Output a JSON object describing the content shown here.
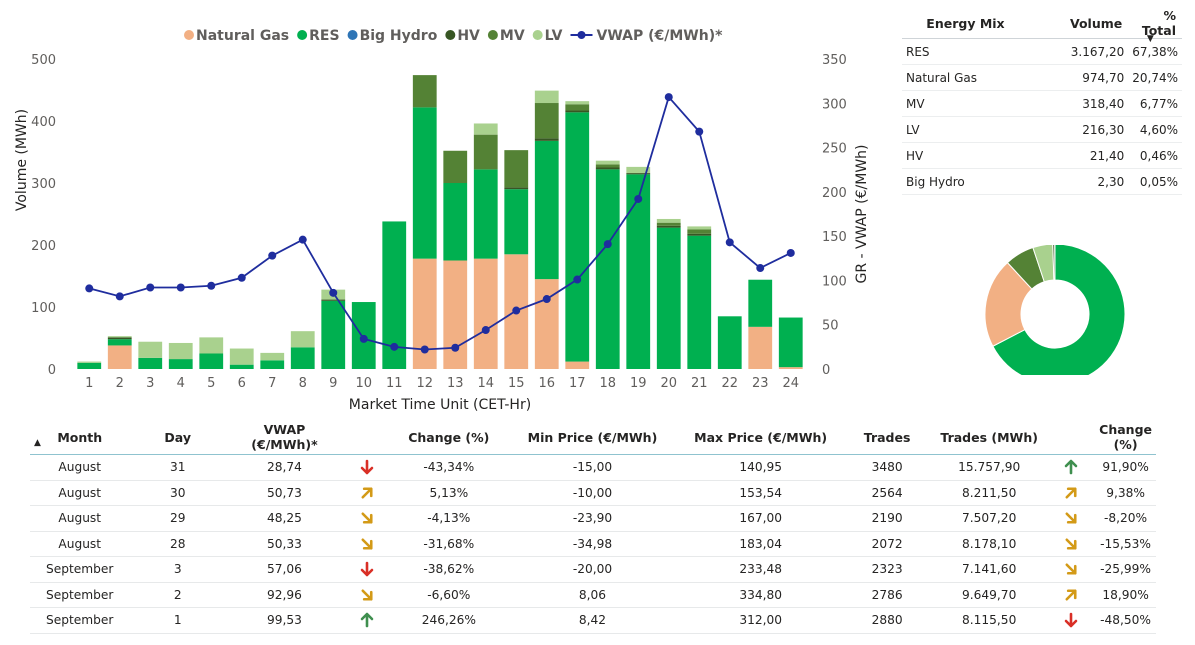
{
  "colors": {
    "natural_gas": "#f2b084",
    "res": "#00b050",
    "big_hydro": "#2e75b6",
    "hv": "#375623",
    "mv": "#548235",
    "lv": "#a9d18e",
    "vwap": "#1f2d9e",
    "arrow_down": "#d92f26",
    "arrow_up": "#3f8f4f",
    "arrow_diag": "#d39a17"
  },
  "chart_data": {
    "type": "bar",
    "stacked": true,
    "legend": {
      "position": "top"
    },
    "xlabel": "Market Time Unit (CET-Hr)",
    "ylabel": "Volume (MWh)",
    "y2label": "GR - VWAP (€/MWh)",
    "ylim": [
      0,
      500
    ],
    "y2lim": [
      0,
      350
    ],
    "yticks": [
      "0",
      "100",
      "200",
      "300",
      "400",
      "500"
    ],
    "y2ticks": [
      "0",
      "50",
      "100",
      "150",
      "200",
      "250",
      "300",
      "350"
    ],
    "categories": [
      "1",
      "2",
      "3",
      "4",
      "5",
      "6",
      "7",
      "8",
      "9",
      "10",
      "11",
      "12",
      "13",
      "14",
      "15",
      "16",
      "17",
      "18",
      "19",
      "20",
      "21",
      "22",
      "23",
      "24"
    ],
    "series": [
      {
        "name": "Natural Gas",
        "key": "natural_gas",
        "values": [
          0,
          38,
          0,
          0,
          0,
          0,
          0,
          0,
          0,
          0,
          0,
          178,
          175,
          178,
          185,
          145,
          12,
          0,
          0,
          0,
          0,
          0,
          68,
          3
        ]
      },
      {
        "name": "RES",
        "key": "res",
        "values": [
          10,
          10,
          18,
          16,
          25,
          7,
          14,
          35,
          110,
          108,
          238,
          244,
          125,
          144,
          105,
          223,
          402,
          322,
          314,
          228,
          215,
          85,
          76,
          80
        ]
      },
      {
        "name": "Big Hydro",
        "key": "big_hydro",
        "values": [
          0,
          0,
          0,
          0,
          0,
          0,
          0,
          0,
          0,
          0,
          0,
          0,
          0,
          0,
          0,
          0,
          0,
          0,
          0,
          0,
          0,
          0,
          0,
          0
        ]
      },
      {
        "name": "HV",
        "key": "hv",
        "values": [
          0,
          3,
          0,
          0,
          0,
          0,
          0,
          0,
          2,
          0,
          0,
          0,
          0,
          0,
          3,
          4,
          3,
          3,
          2,
          3,
          3,
          0,
          0,
          0
        ]
      },
      {
        "name": "MV",
        "key": "mv",
        "values": [
          0,
          0,
          0,
          0,
          0,
          0,
          0,
          0,
          0,
          0,
          0,
          52,
          52,
          56,
          60,
          57,
          10,
          5,
          0,
          5,
          7,
          0,
          0,
          0
        ]
      },
      {
        "name": "LV",
        "key": "lv",
        "values": [
          2,
          2,
          26,
          26,
          26,
          26,
          12,
          26,
          16,
          0,
          0,
          0,
          0,
          18,
          0,
          20,
          5,
          6,
          10,
          6,
          5,
          0,
          0,
          0
        ]
      },
      {
        "name": "VWAP (€/MWh)*",
        "key": "vwap",
        "type": "line",
        "axis": "right",
        "values": [
          91,
          82,
          92,
          92,
          94,
          103,
          128,
          146,
          86,
          34,
          25,
          22,
          24,
          44,
          66,
          79,
          101,
          141,
          192,
          307,
          268,
          143,
          114,
          131
        ]
      }
    ]
  },
  "energy_mix": {
    "headers": [
      "Energy Mix",
      "Volume",
      "% Total"
    ],
    "rows": [
      {
        "name": "RES",
        "volume": "3.167,20",
        "pct": "67,38%",
        "key": "res",
        "share": 67.38
      },
      {
        "name": "Natural Gas",
        "volume": "974,70",
        "pct": "20,74%",
        "key": "natural_gas",
        "share": 20.74
      },
      {
        "name": "MV",
        "volume": "318,40",
        "pct": "6,77%",
        "key": "mv",
        "share": 6.77
      },
      {
        "name": "LV",
        "volume": "216,30",
        "pct": "4,60%",
        "key": "lv",
        "share": 4.6
      },
      {
        "name": "HV",
        "volume": "21,40",
        "pct": "0,46%",
        "key": "hv",
        "share": 0.46
      },
      {
        "name": "Big Hydro",
        "volume": "2,30",
        "pct": "0,05%",
        "key": "big_hydro",
        "share": 0.05
      }
    ]
  },
  "daily_table": {
    "headers": [
      "Month",
      "Day",
      "VWAP (€/MWh)*",
      "Change (%)",
      "Min Price (€/MWh)",
      "Max Price (€/MWh)",
      "Trades",
      "Trades (MWh)",
      "Change (%)"
    ],
    "rows": [
      {
        "month": "August",
        "day": "31",
        "vwap": "28,74",
        "vwap_dir": "down",
        "vwap_change": "-43,34%",
        "min": "-15,00",
        "max": "140,95",
        "trades": "3480",
        "trades_mwh": "15.757,90",
        "trades_dir": "up",
        "trades_change": "91,90%"
      },
      {
        "month": "August",
        "day": "30",
        "vwap": "50,73",
        "vwap_dir": "up-right",
        "vwap_change": "5,13%",
        "min": "-10,00",
        "max": "153,54",
        "trades": "2564",
        "trades_mwh": "8.211,50",
        "trades_dir": "up-right",
        "trades_change": "9,38%"
      },
      {
        "month": "August",
        "day": "29",
        "vwap": "48,25",
        "vwap_dir": "down-right",
        "vwap_change": "-4,13%",
        "min": "-23,90",
        "max": "167,00",
        "trades": "2190",
        "trades_mwh": "7.507,20",
        "trades_dir": "down-right",
        "trades_change": "-8,20%"
      },
      {
        "month": "August",
        "day": "28",
        "vwap": "50,33",
        "vwap_dir": "down-right",
        "vwap_change": "-31,68%",
        "min": "-34,98",
        "max": "183,04",
        "trades": "2072",
        "trades_mwh": "8.178,10",
        "trades_dir": "down-right",
        "trades_change": "-15,53%"
      },
      {
        "month": "September",
        "day": "3",
        "vwap": "57,06",
        "vwap_dir": "down",
        "vwap_change": "-38,62%",
        "min": "-20,00",
        "max": "233,48",
        "trades": "2323",
        "trades_mwh": "7.141,60",
        "trades_dir": "down-right",
        "trades_change": "-25,99%"
      },
      {
        "month": "September",
        "day": "2",
        "vwap": "92,96",
        "vwap_dir": "down-right",
        "vwap_change": "-6,60%",
        "min": "8,06",
        "max": "334,80",
        "trades": "2786",
        "trades_mwh": "9.649,70",
        "trades_dir": "up-right",
        "trades_change": "18,90%"
      },
      {
        "month": "September",
        "day": "1",
        "vwap": "99,53",
        "vwap_dir": "up",
        "vwap_change": "246,26%",
        "min": "8,42",
        "max": "312,00",
        "trades": "2880",
        "trades_mwh": "8.115,50",
        "trades_dir": "down",
        "trades_change": "-48,50%"
      }
    ]
  }
}
